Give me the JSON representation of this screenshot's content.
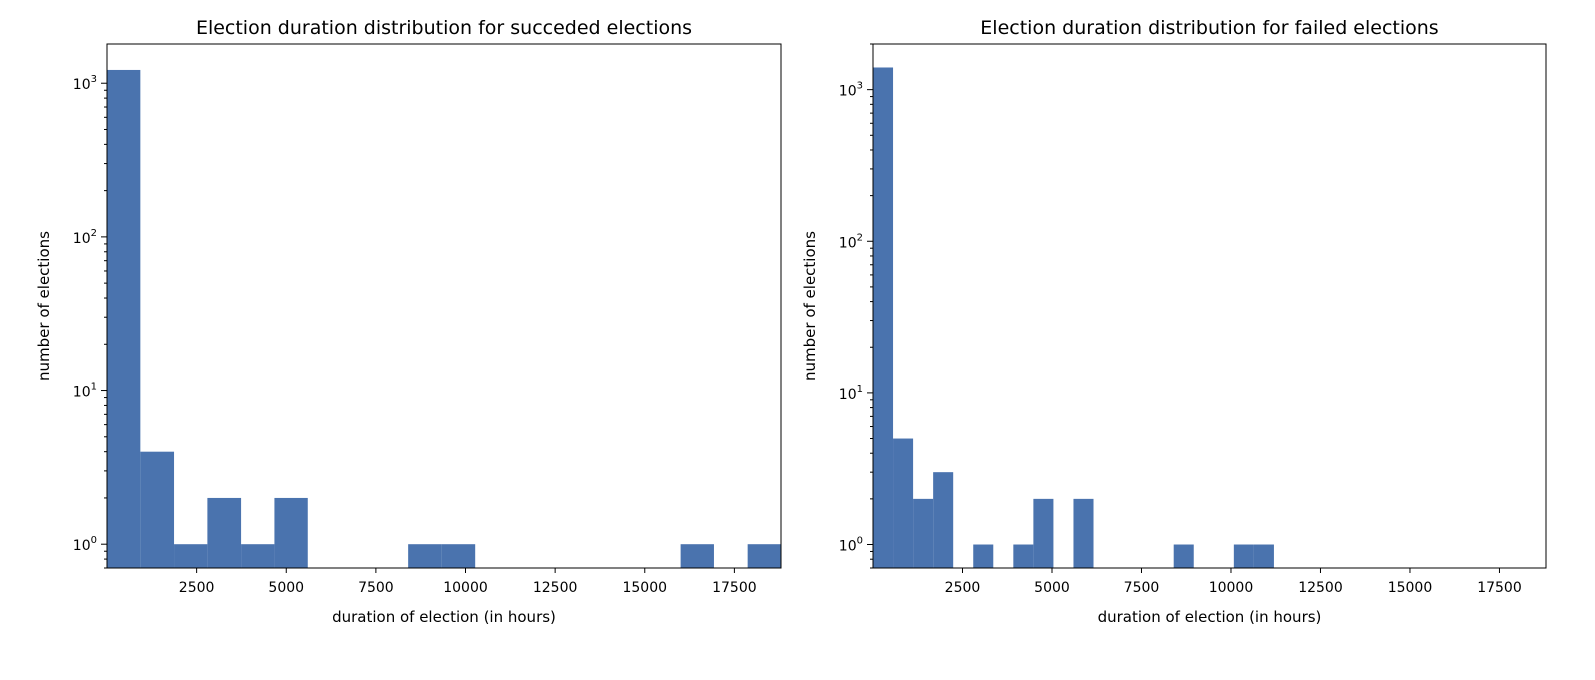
{
  "chart_data": [
    {
      "type": "bar",
      "title": "Election duration distribution for succeded elections",
      "xlabel": "duration of election (in hours)",
      "ylabel": "number of elections",
      "yscale": "log",
      "xlim": [
        0,
        18800
      ],
      "ylim": [
        0.7,
        1800
      ],
      "grid": false,
      "color": "#4a73ae",
      "x_ticks": [
        {
          "value": 2500,
          "label": "2500"
        },
        {
          "value": 5000,
          "label": "5000"
        },
        {
          "value": 7500,
          "label": "7500"
        },
        {
          "value": 10000,
          "label": "10000"
        },
        {
          "value": 12500,
          "label": "12500"
        },
        {
          "value": 15000,
          "label": "15000"
        },
        {
          "value": 17500,
          "label": "17500"
        }
      ],
      "y_ticks": [
        {
          "value": 1,
          "base": "10",
          "exp": "0"
        },
        {
          "value": 10,
          "base": "10",
          "exp": "1"
        },
        {
          "value": 100,
          "base": "10",
          "exp": "2"
        },
        {
          "value": 1000,
          "base": "10",
          "exp": "3"
        }
      ],
      "bins": [
        {
          "x0": 0,
          "x1": 930,
          "count": 1220
        },
        {
          "x0": 930,
          "x1": 1870,
          "count": 4
        },
        {
          "x0": 1870,
          "x1": 2800,
          "count": 1
        },
        {
          "x0": 2800,
          "x1": 3740,
          "count": 2
        },
        {
          "x0": 3740,
          "x1": 4670,
          "count": 1
        },
        {
          "x0": 4670,
          "x1": 5600,
          "count": 2
        },
        {
          "x0": 8400,
          "x1": 9340,
          "count": 1
        },
        {
          "x0": 9340,
          "x1": 10270,
          "count": 1
        },
        {
          "x0": 16000,
          "x1": 16930,
          "count": 1
        },
        {
          "x0": 17870,
          "x1": 18800,
          "count": 1
        }
      ]
    },
    {
      "type": "bar",
      "title": "Election duration distribution for failed elections",
      "xlabel": "duration of election (in hours)",
      "ylabel": "number of elections",
      "yscale": "log",
      "xlim": [
        0,
        18800
      ],
      "ylim": [
        0.7,
        2000
      ],
      "grid": false,
      "color": "#4a73ae",
      "x_ticks": [
        {
          "value": 2500,
          "label": "2500"
        },
        {
          "value": 5000,
          "label": "5000"
        },
        {
          "value": 7500,
          "label": "7500"
        },
        {
          "value": 10000,
          "label": "10000"
        },
        {
          "value": 12500,
          "label": "12500"
        },
        {
          "value": 15000,
          "label": "15000"
        },
        {
          "value": 17500,
          "label": "17500"
        }
      ],
      "y_ticks": [
        {
          "value": 1,
          "base": "10",
          "exp": "0"
        },
        {
          "value": 10,
          "base": "10",
          "exp": "1"
        },
        {
          "value": 100,
          "base": "10",
          "exp": "2"
        },
        {
          "value": 1000,
          "base": "10",
          "exp": "3"
        }
      ],
      "bins": [
        {
          "x0": 0,
          "x1": 560,
          "count": 1400
        },
        {
          "x0": 560,
          "x1": 1120,
          "count": 5
        },
        {
          "x0": 1120,
          "x1": 1680,
          "count": 2
        },
        {
          "x0": 1680,
          "x1": 2240,
          "count": 3
        },
        {
          "x0": 2800,
          "x1": 3360,
          "count": 1
        },
        {
          "x0": 3920,
          "x1": 4480,
          "count": 1
        },
        {
          "x0": 4480,
          "x1": 5040,
          "count": 2
        },
        {
          "x0": 5600,
          "x1": 6160,
          "count": 2
        },
        {
          "x0": 8400,
          "x1": 8960,
          "count": 1
        },
        {
          "x0": 10080,
          "x1": 10640,
          "count": 1
        },
        {
          "x0": 10640,
          "x1": 11200,
          "count": 1
        }
      ]
    }
  ]
}
